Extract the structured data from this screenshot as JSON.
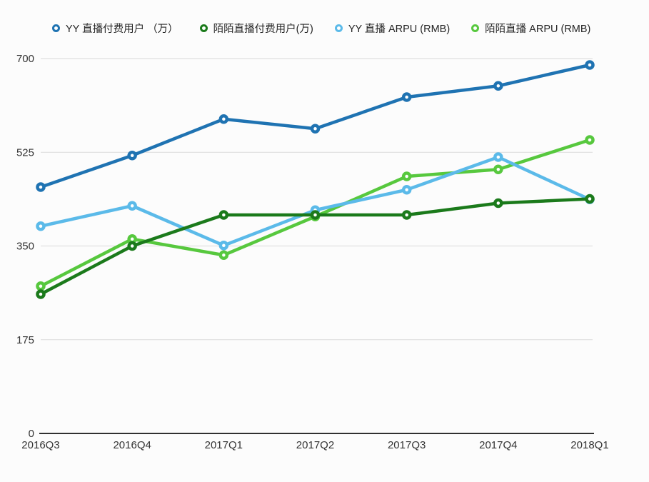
{
  "chart_data": {
    "type": "line",
    "title": "",
    "xlabel": "",
    "ylabel": "",
    "categories": [
      "2016Q3",
      "2016Q4",
      "2017Q1",
      "2017Q2",
      "2017Q3",
      "2017Q4",
      "2018Q1"
    ],
    "series": [
      {
        "name": "YY 直播付费用户 （万）",
        "color": "#1f73b2",
        "values": [
          460,
          519,
          587,
          569,
          628,
          649,
          688
        ]
      },
      {
        "name": "陌陌直播付费用户(万)",
        "color": "#1b7a1b",
        "values": [
          260,
          350,
          408,
          408,
          408,
          430,
          438
        ]
      },
      {
        "name": "YY 直播 ARPU (RMB)",
        "color": "#5bbae9",
        "values": [
          387,
          425,
          351,
          417,
          455,
          516,
          437
        ]
      },
      {
        "name": "陌陌直播 ARPU (RMB)",
        "color": "#57c83e",
        "values": [
          275,
          363,
          333,
          405,
          480,
          493,
          548
        ]
      }
    ],
    "y_ticks": [
      0,
      175,
      350,
      525,
      700
    ],
    "ylim": [
      0,
      700
    ],
    "grid": true,
    "legend_position": "top",
    "colors": {
      "grid_line": "#d9d9d9",
      "axis_line": "#303030",
      "tick_text": "#333333",
      "legend_text": "#262626",
      "background": "#fcfcfc",
      "marker_fill": "#ffffff"
    }
  }
}
